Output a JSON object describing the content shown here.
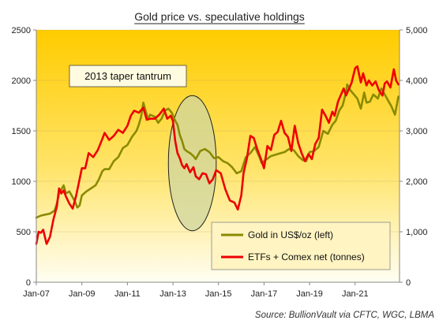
{
  "chart_data": {
    "type": "line",
    "title": "Gold price vs. speculative holdings",
    "source": "Source: BullionVault via CFTC, WGC, LBMA",
    "x_tick_labels": [
      "Jan-07",
      "Jan-09",
      "Jan-11",
      "Jan-13",
      "Jan-15",
      "Jan-17",
      "Jan-19",
      "Jan-21"
    ],
    "x_range": [
      2007.0,
      2022.95
    ],
    "left_axis": {
      "ticks": [
        "0",
        "500",
        "1000",
        "1500",
        "2000",
        "2500"
      ],
      "ylim": [
        0,
        2500
      ]
    },
    "right_axis": {
      "ticks": [
        "0",
        "1,000",
        "2,000",
        "3,000",
        "4,000",
        "5,000"
      ],
      "ylim": [
        0,
        5000
      ]
    },
    "grid": "horizontal",
    "legend_position": "bottom-right",
    "annotation": {
      "label": "2013 taper tantrum",
      "center_x": 2013.85,
      "center_y_left": 1180,
      "rx_years": 1.05,
      "ry_left": 670
    },
    "colors": {
      "gold": "#8a8a00",
      "etf": "#ee0000",
      "bg_top": "#ffcc00",
      "bg_bottom": "#fffef3",
      "ellipse_fill": "#cfd5a0"
    },
    "series": [
      {
        "name": "Gold in US$/oz (left)",
        "axis": "left",
        "color": "#8a8a00",
        "x": [
          2007.0,
          2007.2,
          2007.4,
          2007.6,
          2007.8,
          2007.9,
          2008.0,
          2008.1,
          2008.2,
          2008.3,
          2008.45,
          2008.55,
          2008.7,
          2008.8,
          2008.9,
          2009.0,
          2009.2,
          2009.4,
          2009.6,
          2009.75,
          2009.9,
          2010.0,
          2010.2,
          2010.4,
          2010.6,
          2010.8,
          2011.0,
          2011.2,
          2011.4,
          2011.5,
          2011.6,
          2011.7,
          2011.8,
          2011.9,
          2012.0,
          2012.2,
          2012.35,
          2012.5,
          2012.65,
          2012.8,
          2012.95,
          2013.1,
          2013.2,
          2013.3,
          2013.4,
          2013.5,
          2013.6,
          2013.75,
          2013.9,
          2014.0,
          2014.2,
          2014.4,
          2014.6,
          2014.8,
          2015.0,
          2015.2,
          2015.4,
          2015.6,
          2015.8,
          2016.0,
          2016.2,
          2016.4,
          2016.6,
          2016.8,
          2016.9,
          2017.0,
          2017.3,
          2017.6,
          2017.9,
          2018.1,
          2018.3,
          2018.5,
          2018.7,
          2018.85,
          2019.0,
          2019.2,
          2019.4,
          2019.6,
          2019.8,
          2020.0,
          2020.15,
          2020.3,
          2020.45,
          2020.6,
          2020.65,
          2020.8,
          2020.95,
          2021.1,
          2021.25,
          2021.4,
          2021.5,
          2021.65,
          2021.8,
          2022.0,
          2022.15,
          2022.3,
          2022.45,
          2022.6,
          2022.75,
          2022.9
        ],
        "values": [
          640,
          660,
          670,
          680,
          710,
          780,
          880,
          920,
          960,
          880,
          900,
          860,
          800,
          740,
          760,
          860,
          900,
          930,
          960,
          1020,
          1100,
          1120,
          1120,
          1200,
          1240,
          1330,
          1360,
          1440,
          1500,
          1560,
          1640,
          1780,
          1700,
          1620,
          1660,
          1640,
          1580,
          1620,
          1700,
          1720,
          1680,
          1600,
          1560,
          1460,
          1400,
          1320,
          1300,
          1280,
          1250,
          1220,
          1300,
          1320,
          1290,
          1230,
          1240,
          1200,
          1180,
          1140,
          1080,
          1100,
          1240,
          1280,
          1340,
          1240,
          1180,
          1200,
          1250,
          1270,
          1290,
          1320,
          1310,
          1250,
          1210,
          1200,
          1290,
          1300,
          1340,
          1500,
          1470,
          1560,
          1600,
          1700,
          1750,
          1880,
          1960,
          1900,
          1860,
          1820,
          1720,
          1880,
          1780,
          1790,
          1860,
          1820,
          1920,
          1860,
          1800,
          1740,
          1660,
          1840
        ]
      },
      {
        "name": "ETFs + Comex net (tonnes)",
        "axis": "right",
        "color": "#ee0000",
        "x": [
          2007.0,
          2007.1,
          2007.2,
          2007.3,
          2007.45,
          2007.6,
          2007.75,
          2007.9,
          2008.0,
          2008.1,
          2008.2,
          2008.3,
          2008.45,
          2008.6,
          2008.75,
          2008.9,
          2009.0,
          2009.15,
          2009.3,
          2009.5,
          2009.7,
          2009.9,
          2010.0,
          2010.2,
          2010.4,
          2010.6,
          2010.8,
          2011.0,
          2011.15,
          2011.3,
          2011.5,
          2011.7,
          2011.85,
          2012.0,
          2012.2,
          2012.4,
          2012.6,
          2012.75,
          2012.9,
          2013.0,
          2013.1,
          2013.2,
          2013.3,
          2013.4,
          2013.5,
          2013.6,
          2013.75,
          2013.9,
          2014.0,
          2014.15,
          2014.3,
          2014.45,
          2014.6,
          2014.75,
          2014.9,
          2015.1,
          2015.3,
          2015.5,
          2015.7,
          2015.85,
          2016.0,
          2016.1,
          2016.25,
          2016.4,
          2016.55,
          2016.7,
          2016.85,
          2017.0,
          2017.15,
          2017.3,
          2017.45,
          2017.6,
          2017.75,
          2017.9,
          2018.05,
          2018.2,
          2018.35,
          2018.5,
          2018.65,
          2018.8,
          2018.95,
          2019.1,
          2019.25,
          2019.4,
          2019.55,
          2019.7,
          2019.85,
          2020.0,
          2020.1,
          2020.25,
          2020.4,
          2020.5,
          2020.6,
          2020.7,
          2020.85,
          2021.0,
          2021.1,
          2021.25,
          2021.35,
          2021.5,
          2021.6,
          2021.75,
          2021.9,
          2022.05,
          2022.2,
          2022.3,
          2022.4,
          2022.55,
          2022.7,
          2022.8,
          2022.9
        ],
        "values": [
          760,
          1000,
          980,
          1040,
          760,
          900,
          1240,
          1500,
          1860,
          1760,
          1820,
          1700,
          1560,
          1460,
          1720,
          2040,
          2260,
          2260,
          2560,
          2480,
          2620,
          2840,
          2960,
          2820,
          2900,
          3020,
          2960,
          3100,
          3300,
          3400,
          3360,
          3460,
          3220,
          3240,
          3240,
          3320,
          3440,
          3240,
          3300,
          3200,
          2800,
          2560,
          2460,
          2320,
          2260,
          2340,
          2180,
          2280,
          2100,
          2040,
          2160,
          2140,
          1960,
          2040,
          2220,
          2160,
          1840,
          1620,
          1580,
          1440,
          1720,
          2160,
          2460,
          2900,
          2860,
          2640,
          2460,
          2260,
          2700,
          2620,
          2920,
          2980,
          3200,
          2960,
          2880,
          2600,
          3100,
          2760,
          2560,
          2400,
          2540,
          2440,
          2740,
          2860,
          3420,
          3300,
          3160,
          3380,
          3300,
          3580,
          3740,
          3840,
          3700,
          3800,
          3960,
          4240,
          4280,
          3960,
          4140,
          3900,
          4000,
          3900,
          3980,
          3800,
          3700,
          3940,
          3980,
          3860,
          4220,
          4000,
          3920
        ]
      }
    ]
  }
}
